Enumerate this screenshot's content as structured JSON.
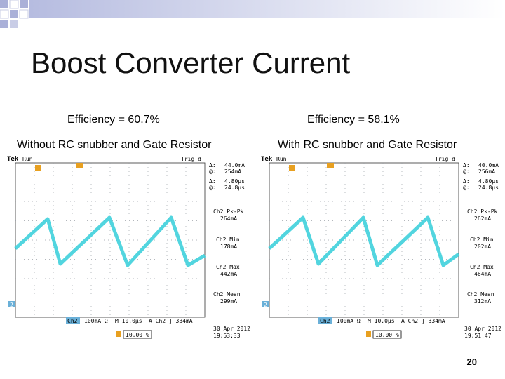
{
  "slide": {
    "title": "Boost Converter Current",
    "page_number": "20"
  },
  "panels": [
    {
      "efficiency": "Efficiency = 60.7%",
      "condition": "Without RC snubber and Gate Resistor",
      "scope": {
        "brand": "Tek",
        "run": "Run",
        "trig": "Trig'd",
        "delta_label": "Δ:",
        "delta_value": "44.0mA",
        "at_label": "@:",
        "at_value": "254mA",
        "delta_t_label": "Δ:",
        "delta_t_value": "4.80µs",
        "at_t_label": "@:",
        "at_t_value": "24.8µs",
        "m1_label": "Ch2 Pk-Pk",
        "m1_value": "264mA",
        "m2_label": "Ch2 Min",
        "m2_value": "178mA",
        "m3_label": "Ch2 Max",
        "m3_value": "442mA",
        "m4_label": "Ch2 Mean",
        "m4_value": "299mA",
        "ch_marker": "2",
        "bottom_ch": "Ch2",
        "bottom_scale": "100mA Ω",
        "bottom_time": "M 10.0µs",
        "bottom_trig": "A  Ch2  ʃ  334mA",
        "bottom_pct": "10.00 %",
        "date": "30 Apr 2012",
        "time": "19:53:33"
      }
    },
    {
      "efficiency": "Efficiency = 58.1%",
      "condition": "With RC snubber and Gate Resistor",
      "scope": {
        "brand": "Tek",
        "run": "Run",
        "trig": "Trig'd",
        "delta_label": "Δ:",
        "delta_value": "40.0mA",
        "at_label": "@:",
        "at_value": "256mA",
        "delta_t_label": "Δ:",
        "delta_t_value": "4.80µs",
        "at_t_label": "@:",
        "at_t_value": "24.8µs",
        "m1_label": "Ch2 Pk-Pk",
        "m1_value": "262mA",
        "m2_label": "Ch2 Min",
        "m2_value": "202mA",
        "m3_label": "Ch2 Max",
        "m3_value": "464mA",
        "m4_label": "Ch2 Mean",
        "m4_value": "312mA",
        "ch_marker": "2",
        "bottom_ch": "Ch2",
        "bottom_scale": "100mA Ω",
        "bottom_time": "M 10.0µs",
        "bottom_trig": "A  Ch2  ʃ  334mA",
        "bottom_pct": "10.00 %",
        "date": "30 Apr 2012",
        "time": "19:51:47"
      }
    }
  ],
  "colors": {
    "trace": "#3fd0dc",
    "grid": "#9aa0a6",
    "marker_ch2": "#6ab0d8",
    "marker_trig": "#e8a020",
    "deco": "#c9cde6"
  }
}
